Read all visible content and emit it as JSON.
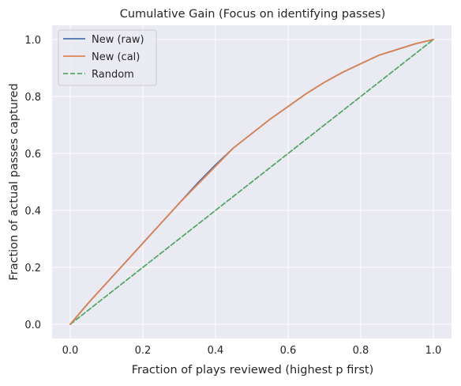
{
  "chart_data": {
    "type": "line",
    "title": "Cumulative Gain (Focus on identifying passes)",
    "xlabel": "Fraction of plays reviewed (highest p first)",
    "ylabel": "Fraction of actual passes captured",
    "xlim": [
      -0.05,
      1.05
    ],
    "ylim": [
      -0.05,
      1.05
    ],
    "xticks": [
      0.0,
      0.2,
      0.4,
      0.6,
      0.8,
      1.0
    ],
    "yticks": [
      0.0,
      0.2,
      0.4,
      0.6,
      0.8,
      1.0
    ],
    "xtick_labels": [
      "0.0",
      "0.2",
      "0.4",
      "0.6",
      "0.8",
      "1.0"
    ],
    "ytick_labels": [
      "0.0",
      "0.2",
      "0.4",
      "0.6",
      "0.8",
      "1.0"
    ],
    "grid": true,
    "legend_position": "top-left",
    "series": [
      {
        "name": "New (raw)",
        "color": "#4c72b0",
        "style": "solid",
        "x": [
          0.0,
          0.05,
          0.1,
          0.15,
          0.2,
          0.25,
          0.3,
          0.35,
          0.4,
          0.45,
          0.5,
          0.55,
          0.6,
          0.65,
          0.7,
          0.75,
          0.8,
          0.85,
          0.9,
          0.95,
          1.0
        ],
        "y": [
          0.0,
          0.075,
          0.145,
          0.215,
          0.285,
          0.355,
          0.425,
          0.495,
          0.56,
          0.62,
          0.67,
          0.72,
          0.765,
          0.81,
          0.85,
          0.885,
          0.915,
          0.945,
          0.965,
          0.985,
          1.0
        ]
      },
      {
        "name": "New (cal)",
        "color": "#dd8452",
        "style": "solid",
        "x": [
          0.0,
          0.05,
          0.1,
          0.15,
          0.2,
          0.25,
          0.3,
          0.35,
          0.4,
          0.45,
          0.5,
          0.55,
          0.6,
          0.65,
          0.7,
          0.75,
          0.8,
          0.85,
          0.9,
          0.95,
          1.0
        ],
        "y": [
          0.0,
          0.075,
          0.145,
          0.215,
          0.285,
          0.355,
          0.425,
          0.49,
          0.555,
          0.62,
          0.67,
          0.72,
          0.765,
          0.81,
          0.85,
          0.885,
          0.915,
          0.945,
          0.965,
          0.985,
          1.0
        ]
      },
      {
        "name": "Random",
        "color": "#55a868",
        "style": "dashed",
        "x": [
          0.0,
          1.0
        ],
        "y": [
          0.0,
          1.0
        ]
      }
    ]
  }
}
